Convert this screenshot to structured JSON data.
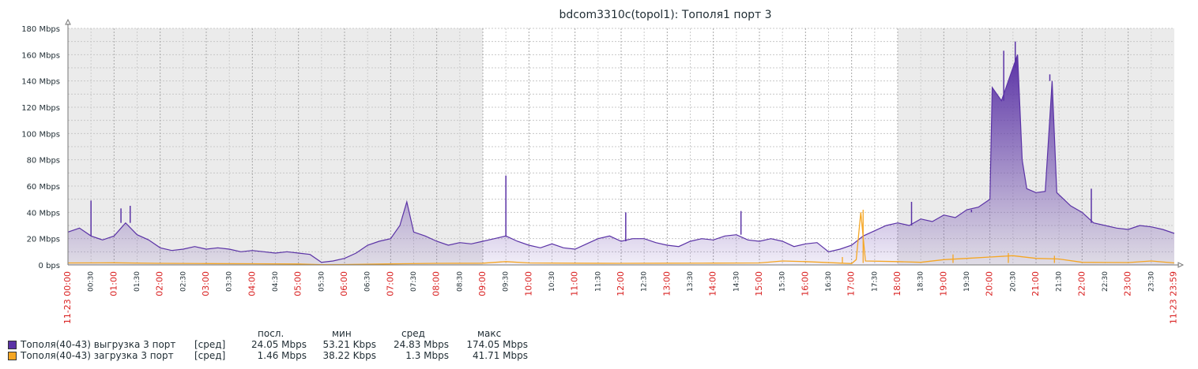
{
  "chart_data": {
    "type": "line",
    "title": "bdcom3310c(topol1): Тополя1 порт 3",
    "ylim": [
      0,
      180
    ],
    "yunit": "Mbps",
    "y_ticks": [
      {
        "value": 0,
        "label": "0 bps"
      },
      {
        "value": 20,
        "label": "20 Mbps"
      },
      {
        "value": 40,
        "label": "40 Mbps"
      },
      {
        "value": 60,
        "label": "60 Mbps"
      },
      {
        "value": 80,
        "label": "80 Mbps"
      },
      {
        "value": 100,
        "label": "100 Mbps"
      },
      {
        "value": 120,
        "label": "120 Mbps"
      },
      {
        "value": 140,
        "label": "140 Mbps"
      },
      {
        "value": 160,
        "label": "160 Mbps"
      },
      {
        "value": 180,
        "label": "180 Mbps"
      }
    ],
    "x_range_hours": [
      0,
      24
    ],
    "x_start_label": "11-23 00:00",
    "x_end_label": "11-23 23:59",
    "x_ticks": [
      "00:30",
      "01:00",
      "01:30",
      "02:00",
      "02:30",
      "03:00",
      "03:30",
      "04:00",
      "04:30",
      "05:00",
      "05:30",
      "06:00",
      "06:30",
      "07:00",
      "07:30",
      "08:00",
      "08:30",
      "09:00",
      "09:30",
      "10:00",
      "10:30",
      "11:00",
      "11:30",
      "12:00",
      "12:30",
      "13:00",
      "13:30",
      "14:00",
      "14:30",
      "15:00",
      "15:30",
      "16:00",
      "16:30",
      "17:00",
      "17:30",
      "18:00",
      "18:30",
      "19:00",
      "19:30",
      "20:00",
      "20:30",
      "21:00",
      "21:30",
      "22:00",
      "22:30",
      "23:00",
      "23:30"
    ],
    "shaded_periods": [
      [
        0,
        9
      ],
      [
        18,
        24
      ]
    ],
    "grid": true,
    "series": [
      {
        "name": "Тополя(40-43) выгрузка 3 порт",
        "color": "#5b33a6",
        "points": [
          [
            0,
            25
          ],
          [
            0.25,
            28
          ],
          [
            0.5,
            22
          ],
          [
            0.75,
            19
          ],
          [
            1,
            22
          ],
          [
            1.25,
            32
          ],
          [
            1.5,
            23
          ],
          [
            1.75,
            19
          ],
          [
            2,
            13
          ],
          [
            2.25,
            11
          ],
          [
            2.5,
            12
          ],
          [
            2.75,
            14
          ],
          [
            3,
            12
          ],
          [
            3.25,
            13
          ],
          [
            3.5,
            12
          ],
          [
            3.75,
            10
          ],
          [
            4,
            11
          ],
          [
            4.25,
            10
          ],
          [
            4.5,
            9
          ],
          [
            4.75,
            10
          ],
          [
            5,
            9
          ],
          [
            5.25,
            8
          ],
          [
            5.5,
            2
          ],
          [
            5.75,
            3
          ],
          [
            6,
            5
          ],
          [
            6.25,
            9
          ],
          [
            6.5,
            15
          ],
          [
            6.75,
            18
          ],
          [
            7,
            20
          ],
          [
            7.2,
            30
          ],
          [
            7.35,
            48
          ],
          [
            7.5,
            25
          ],
          [
            7.75,
            22
          ],
          [
            8,
            18
          ],
          [
            8.25,
            15
          ],
          [
            8.5,
            17
          ],
          [
            8.75,
            16
          ],
          [
            9,
            18
          ],
          [
            9.25,
            20
          ],
          [
            9.5,
            22
          ],
          [
            9.75,
            18
          ],
          [
            10,
            15
          ],
          [
            10.25,
            13
          ],
          [
            10.5,
            16
          ],
          [
            10.75,
            13
          ],
          [
            11,
            12
          ],
          [
            11.25,
            16
          ],
          [
            11.5,
            20
          ],
          [
            11.75,
            22
          ],
          [
            12,
            18
          ],
          [
            12.25,
            20
          ],
          [
            12.5,
            20
          ],
          [
            12.75,
            17
          ],
          [
            13,
            15
          ],
          [
            13.25,
            14
          ],
          [
            13.5,
            18
          ],
          [
            13.75,
            20
          ],
          [
            14,
            19
          ],
          [
            14.25,
            22
          ],
          [
            14.5,
            23
          ],
          [
            14.75,
            19
          ],
          [
            15,
            18
          ],
          [
            15.25,
            20
          ],
          [
            15.5,
            18
          ],
          [
            15.75,
            14
          ],
          [
            16,
            16
          ],
          [
            16.25,
            17
          ],
          [
            16.5,
            10
          ],
          [
            16.75,
            12
          ],
          [
            17,
            15
          ],
          [
            17.25,
            22
          ],
          [
            17.5,
            26
          ],
          [
            17.75,
            30
          ],
          [
            18,
            32
          ],
          [
            18.25,
            30
          ],
          [
            18.5,
            35
          ],
          [
            18.75,
            33
          ],
          [
            19,
            38
          ],
          [
            19.25,
            36
          ],
          [
            19.5,
            42
          ],
          [
            19.75,
            44
          ],
          [
            20,
            50
          ],
          [
            20.05,
            135
          ],
          [
            20.25,
            125
          ],
          [
            20.5,
            150
          ],
          [
            20.6,
            160
          ],
          [
            20.7,
            80
          ],
          [
            20.8,
            58
          ],
          [
            21,
            55
          ],
          [
            21.2,
            56
          ],
          [
            21.35,
            140
          ],
          [
            21.45,
            55
          ],
          [
            21.75,
            45
          ],
          [
            22,
            40
          ],
          [
            22.25,
            32
          ],
          [
            22.5,
            30
          ],
          [
            22.75,
            28
          ],
          [
            23,
            27
          ],
          [
            23.25,
            30
          ],
          [
            23.5,
            29
          ],
          [
            23.75,
            27
          ],
          [
            24,
            24
          ]
        ],
        "spikes": [
          [
            0.5,
            49
          ],
          [
            1.15,
            43
          ],
          [
            1.35,
            45
          ],
          [
            9.5,
            68
          ],
          [
            12.1,
            40
          ],
          [
            14.6,
            41
          ],
          [
            18.3,
            48
          ],
          [
            19.6,
            40
          ],
          [
            20.3,
            163
          ],
          [
            20.55,
            170
          ],
          [
            21.3,
            145
          ],
          [
            22.2,
            58
          ]
        ],
        "legend_fn": "[сред]",
        "last": "24.05 Mbps",
        "min": "53.21 Kbps",
        "avg": "24.83 Mbps",
        "max": "174.05 Mbps"
      },
      {
        "name": "Тополя(40-43) загрузка 3 порт",
        "color": "#f5a623",
        "points": [
          [
            0,
            1.5
          ],
          [
            1,
            1.6
          ],
          [
            2,
            1.2
          ],
          [
            3,
            1
          ],
          [
            4,
            0.9
          ],
          [
            5,
            0.7
          ],
          [
            5.5,
            0.2
          ],
          [
            6,
            0.3
          ],
          [
            7,
            0.8
          ],
          [
            8,
            1.2
          ],
          [
            9,
            1.3
          ],
          [
            9.5,
            2.5
          ],
          [
            10,
            1.5
          ],
          [
            11,
            1.3
          ],
          [
            12,
            1.2
          ],
          [
            13,
            1.3
          ],
          [
            14,
            1.4
          ],
          [
            15,
            1.5
          ],
          [
            15.5,
            3
          ],
          [
            16,
            2.5
          ],
          [
            17,
            1
          ],
          [
            17.1,
            4
          ],
          [
            17.2,
            40
          ],
          [
            17.3,
            3
          ],
          [
            18,
            2.5
          ],
          [
            18.5,
            2
          ],
          [
            19,
            4
          ],
          [
            19.5,
            5
          ],
          [
            20,
            6
          ],
          [
            20.5,
            7
          ],
          [
            21,
            5
          ],
          [
            21.5,
            4.5
          ],
          [
            22,
            2
          ],
          [
            23,
            1.8
          ],
          [
            23.5,
            3
          ],
          [
            24,
            1.5
          ]
        ],
        "spikes": [
          [
            17.25,
            42
          ],
          [
            16.8,
            6
          ],
          [
            19.2,
            8
          ],
          [
            20.4,
            9
          ],
          [
            21.4,
            7
          ]
        ],
        "legend_fn": "[сред]",
        "last": "1.46 Mbps",
        "min": "38.22 Kbps",
        "avg": "1.3 Mbps",
        "max": "41.71 Mbps"
      }
    ],
    "legend_headers": {
      "last": "посл.",
      "min": "мин",
      "avg": "сред",
      "max": "макс"
    }
  }
}
